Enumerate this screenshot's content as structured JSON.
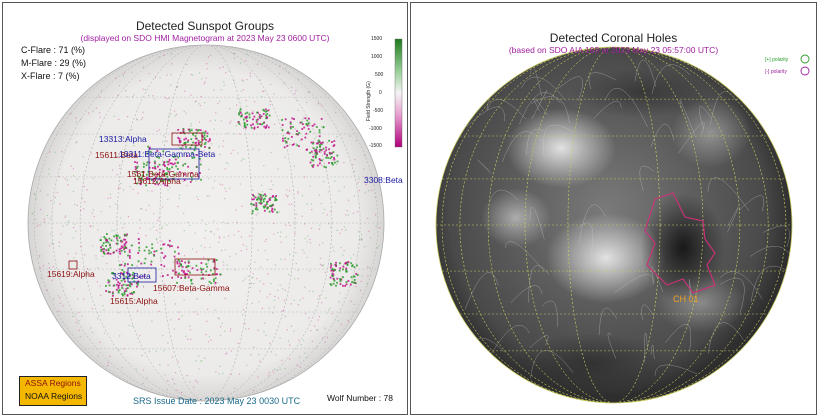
{
  "sunspots": {
    "title": "Detected Sunspot Groups",
    "subtitle": "(displayed on SDO HMI Magnetogram at 2023 May 23 0600 UTC)",
    "flares": {
      "c": "C-Flare : 71 (%)",
      "m": "M-Flare : 29 (%)",
      "x": "X-Flare :  7 (%)"
    },
    "colorbar": {
      "ticks": [
        "1500",
        "1000",
        "500",
        "0",
        "-500",
        "-1000",
        "-1500"
      ],
      "label": "Field Strength (G)"
    },
    "groups": [
      {
        "id": "g-13313",
        "text": "13313:Alpha",
        "color": "blue"
      },
      {
        "id": "g-15611",
        "text": "15611:Beta",
        "color": "red"
      },
      {
        "id": "g-13311",
        "text": "13311:Beta-Gamma-Beta",
        "color": "blue"
      },
      {
        "id": "g-1561",
        "text": "1561 Beta-Gamma",
        "color": "red"
      },
      {
        "id": "g-15612",
        "text": "15612:Alpha",
        "color": "red"
      },
      {
        "id": "g-3308",
        "text": "3308:Beta",
        "color": "blue"
      },
      {
        "id": "g-15619",
        "text": "15619:Alpha",
        "color": "red"
      },
      {
        "id": "g-3312",
        "text": "3312:Beta",
        "color": "blue"
      },
      {
        "id": "g-15607",
        "text": "15607:Beta-Gamma",
        "color": "red"
      },
      {
        "id": "g-15615",
        "text": "15615:Alpha",
        "color": "red"
      }
    ],
    "legend": {
      "assa": "ASSA Regions",
      "noaa": "NOAA Regions"
    },
    "issue_date": "SRS Issue Date : 2023 May 23 0030 UTC",
    "wolf_number": "Wolf Number : 78"
  },
  "coronal": {
    "title": "Detected Coronal Holes",
    "subtitle": "(based on SDO AIA 193 at 2023 May 23 05:57:00 UTC)",
    "polarity_pos": "[+] polarity",
    "polarity_neg": "[-] polarity",
    "hole_label": "CH 01"
  },
  "colors": {
    "positive": "#2a9a2a",
    "negative": "#c0108a",
    "ch_outline": "#d0307a",
    "ch_label": "#e8a020",
    "legend_bg": "#f5b800"
  }
}
